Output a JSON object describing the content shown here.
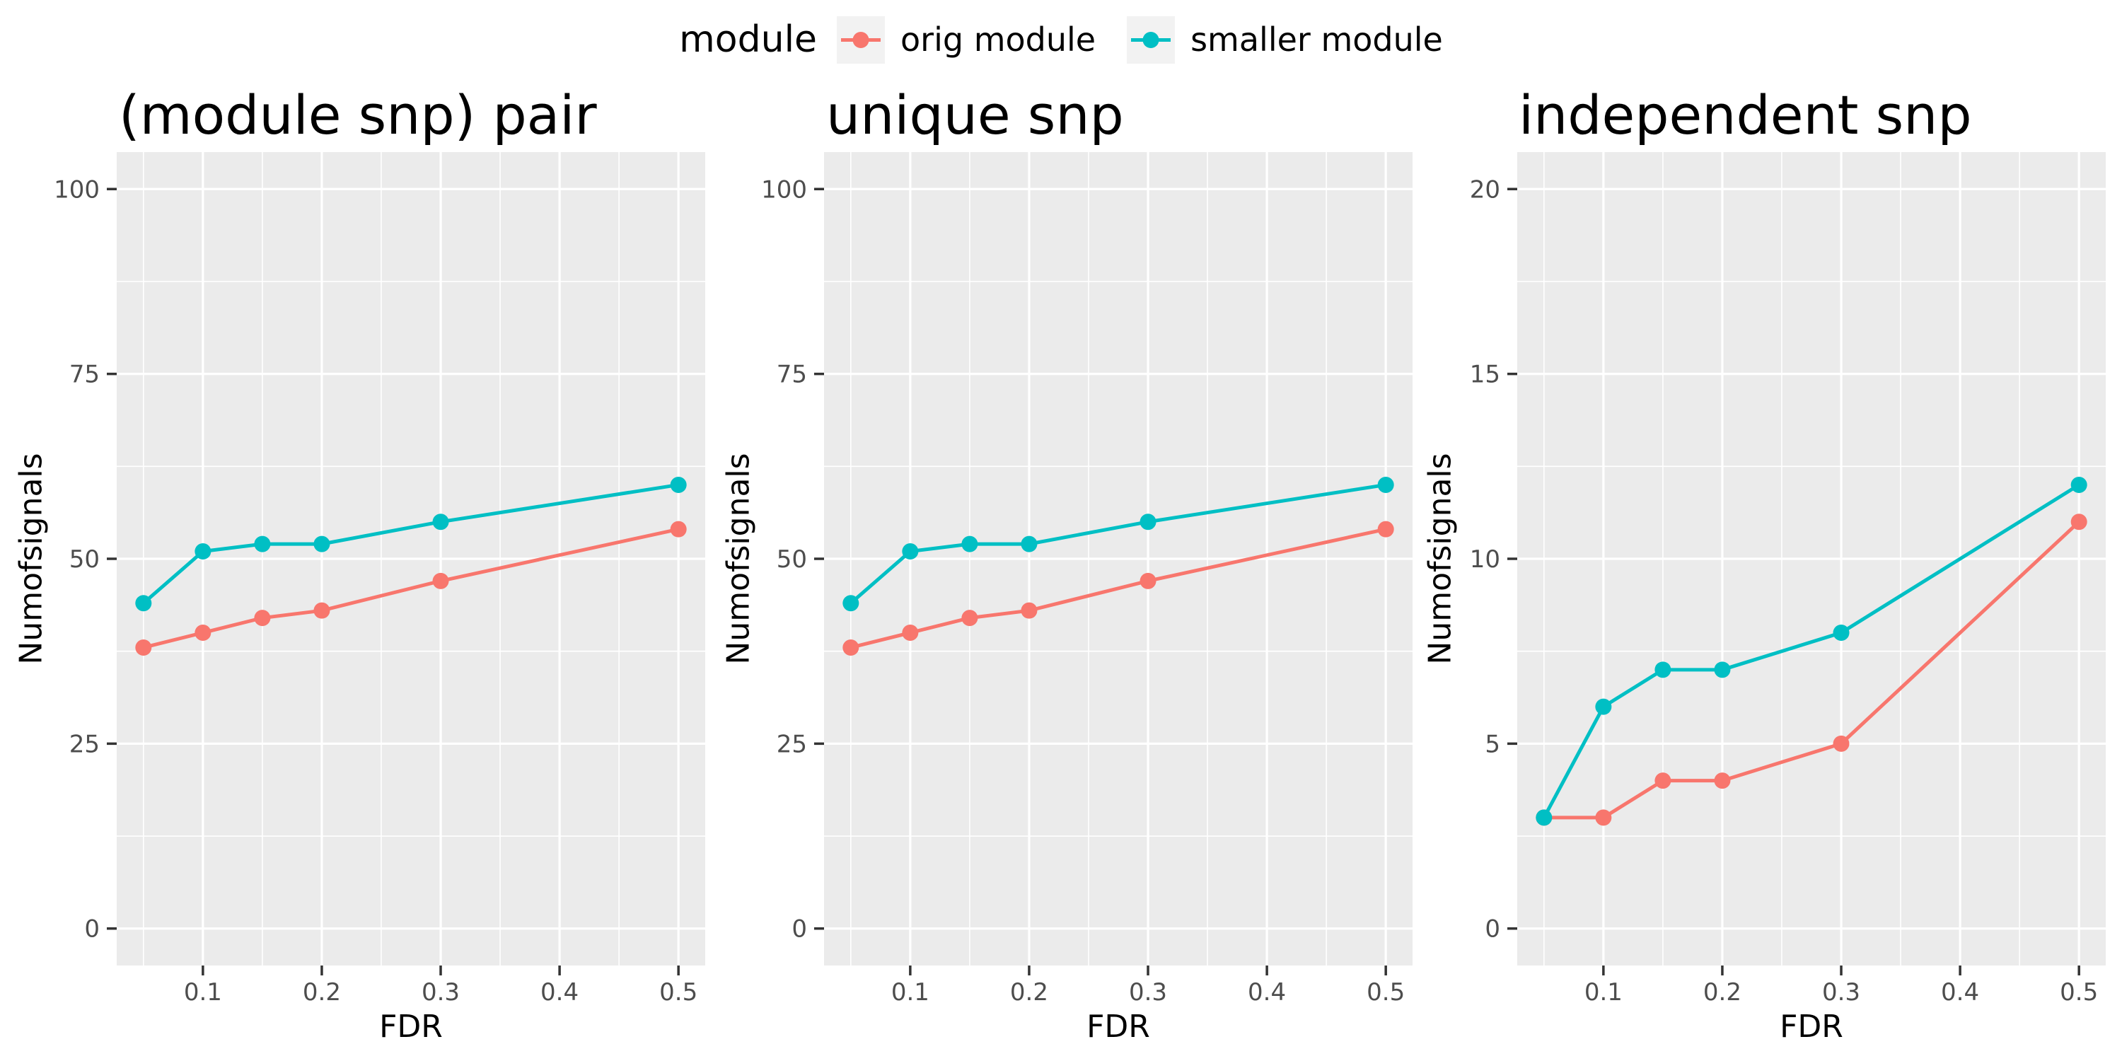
{
  "page": {
    "background": "#FFFFFF"
  },
  "legend": {
    "position": "top-center",
    "title": "module",
    "entries": [
      {
        "label": "orig module",
        "color": "#F8766D"
      },
      {
        "label": "smaller module",
        "color": "#00BFC4"
      }
    ],
    "key_background": "#F2F2F2"
  },
  "style": {
    "panel_background": "#EBEBEB",
    "grid_major_color": "#FFFFFF",
    "grid_minor_color": "#FFFFFF",
    "tick_mark_color": "#333333",
    "tick_label_color": "#4D4D4D",
    "title_color": "#000000"
  },
  "chart_data": [
    {
      "type": "line",
      "title": "(module snp) pair",
      "xlabel": "FDR",
      "ylabel": "Numofsignals",
      "x": [
        0.05,
        0.1,
        0.15,
        0.2,
        0.3,
        0.5
      ],
      "series": [
        {
          "name": "orig module",
          "color": "#F8766D",
          "values": [
            38,
            40,
            42,
            43,
            47,
            54
          ]
        },
        {
          "name": "smaller module",
          "color": "#00BFC4",
          "values": [
            44,
            51,
            52,
            52,
            55,
            60
          ]
        }
      ],
      "xticks": [
        0.1,
        0.2,
        0.3,
        0.4,
        0.5
      ],
      "xtick_labels": [
        "0.1",
        "0.2",
        "0.3",
        "0.4",
        "0.5"
      ],
      "yticks": [
        0,
        25,
        50,
        75,
        100
      ],
      "ytick_labels": [
        "0",
        "25",
        "50",
        "75",
        "100"
      ],
      "xminor": [
        0.05,
        0.15,
        0.25,
        0.35,
        0.45
      ],
      "yminor": [
        12.5,
        37.5,
        62.5,
        87.5
      ],
      "xlim": [
        0.0275,
        0.5225
      ],
      "ylim": [
        -5,
        105
      ],
      "grid": true,
      "legend_position": "top"
    },
    {
      "type": "line",
      "title": "unique snp",
      "xlabel": "FDR",
      "ylabel": "Numofsignals",
      "x": [
        0.05,
        0.1,
        0.15,
        0.2,
        0.3,
        0.5
      ],
      "series": [
        {
          "name": "orig module",
          "color": "#F8766D",
          "values": [
            38,
            40,
            42,
            43,
            47,
            54
          ]
        },
        {
          "name": "smaller module",
          "color": "#00BFC4",
          "values": [
            44,
            51,
            52,
            52,
            55,
            60
          ]
        }
      ],
      "xticks": [
        0.1,
        0.2,
        0.3,
        0.4,
        0.5
      ],
      "xtick_labels": [
        "0.1",
        "0.2",
        "0.3",
        "0.4",
        "0.5"
      ],
      "yticks": [
        0,
        25,
        50,
        75,
        100
      ],
      "ytick_labels": [
        "0",
        "25",
        "50",
        "75",
        "100"
      ],
      "xminor": [
        0.05,
        0.15,
        0.25,
        0.35,
        0.45
      ],
      "yminor": [
        12.5,
        37.5,
        62.5,
        87.5
      ],
      "xlim": [
        0.0275,
        0.5225
      ],
      "ylim": [
        -5,
        105
      ],
      "grid": true,
      "legend_position": "top"
    },
    {
      "type": "line",
      "title": "independent snp",
      "xlabel": "FDR",
      "ylabel": "Numofsignals",
      "x": [
        0.05,
        0.1,
        0.15,
        0.2,
        0.3,
        0.5
      ],
      "series": [
        {
          "name": "orig module",
          "color": "#F8766D",
          "values": [
            3,
            3,
            4,
            4,
            5,
            11
          ]
        },
        {
          "name": "smaller module",
          "color": "#00BFC4",
          "values": [
            3,
            6,
            7,
            7,
            8,
            12
          ]
        }
      ],
      "xticks": [
        0.1,
        0.2,
        0.3,
        0.4,
        0.5
      ],
      "xtick_labels": [
        "0.1",
        "0.2",
        "0.3",
        "0.4",
        "0.5"
      ],
      "yticks": [
        0,
        5,
        10,
        15,
        20
      ],
      "ytick_labels": [
        "0",
        "5",
        "10",
        "15",
        "20"
      ],
      "xminor": [
        0.05,
        0.15,
        0.25,
        0.35,
        0.45
      ],
      "yminor": [
        2.5,
        7.5,
        12.5,
        17.5
      ],
      "xlim": [
        0.0275,
        0.5225
      ],
      "ylim": [
        -1,
        21
      ],
      "grid": true,
      "legend_position": "top"
    }
  ]
}
